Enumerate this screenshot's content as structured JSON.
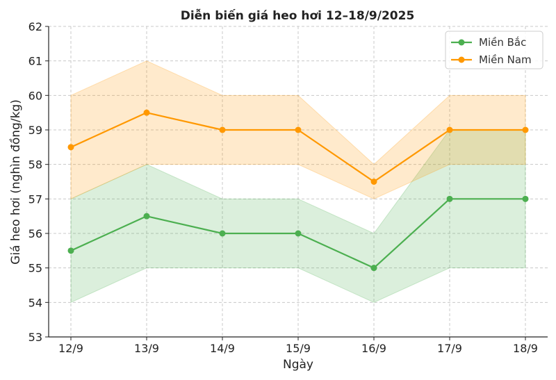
{
  "chart_data": {
    "type": "line",
    "title": "Diễn biến giá heo hơi 12–18/9/2025",
    "xlabel": "Ngày",
    "ylabel": "Giá heo hơi (nghìn đồng/kg)",
    "categories": [
      "12/9",
      "13/9",
      "14/9",
      "15/9",
      "16/9",
      "17/9",
      "18/9"
    ],
    "ylim": [
      53,
      62
    ],
    "yticks": [
      53,
      54,
      55,
      56,
      57,
      58,
      59,
      60,
      61,
      62
    ],
    "grid": true,
    "legend_position": "top-right",
    "series": [
      {
        "name": "Miền Bắc",
        "color": "#4caf50",
        "values": [
          55.5,
          56.5,
          56,
          56,
          55,
          57,
          57
        ],
        "range_low": [
          54,
          55,
          55,
          55,
          54,
          55,
          55
        ],
        "range_high": [
          57,
          58,
          57,
          57,
          56,
          59,
          59
        ]
      },
      {
        "name": "Miền Nam",
        "color": "#ff9800",
        "values": [
          58.5,
          59.5,
          59,
          59,
          57.5,
          59,
          59
        ],
        "range_low": [
          57,
          58,
          58,
          58,
          57,
          58,
          58
        ],
        "range_high": [
          60,
          61,
          60,
          60,
          58,
          60,
          60
        ]
      }
    ]
  }
}
